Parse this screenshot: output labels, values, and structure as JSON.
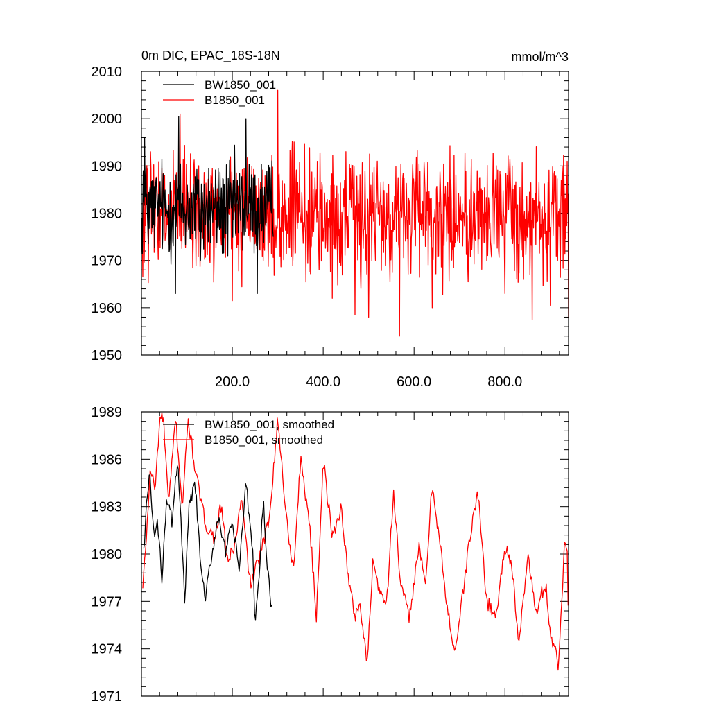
{
  "chart_data": [
    {
      "type": "line",
      "title": "0m DIC, EPAC_18S-18N",
      "units": "mmol/m^3",
      "xlim": [
        0,
        940
      ],
      "ylim": [
        1950,
        2010
      ],
      "yticks": [
        1950,
        1960,
        1970,
        1980,
        1990,
        2000,
        2010
      ],
      "ytick_labels": [
        "1950",
        "1960",
        "1970",
        "1980",
        "1990",
        "2000",
        "2010"
      ],
      "xticks": [
        200,
        400,
        600,
        800
      ],
      "xtick_labels": [
        "200.0",
        "400.0",
        "600.0",
        "800.0"
      ],
      "grid": false,
      "legend": "top-left",
      "series": [
        {
          "name": "BW1850_001",
          "color": "#000000",
          "x_start": 1,
          "x_end": 290,
          "points": 290,
          "mean": 1981,
          "range": [
            1963,
            2000.5
          ],
          "anchors": [
            [
              1,
              1979
            ],
            [
              4,
              1989
            ],
            [
              7,
              1996
            ],
            [
              12,
              1984
            ],
            [
              25,
              1976
            ],
            [
              40,
              1983
            ],
            [
              55,
              1980
            ],
            [
              75,
              1963
            ],
            [
              82,
              2000.5
            ],
            [
              100,
              1982
            ],
            [
              130,
              1970
            ],
            [
              160,
              1981
            ],
            [
              190,
              1971
            ],
            [
              230,
              2000
            ],
            [
              255,
              1963
            ],
            [
              275,
              1985
            ],
            [
              290,
              1975
            ]
          ]
        },
        {
          "name": "B1850_001",
          "color": "#ff0000",
          "x_start": 1,
          "x_end": 940,
          "points": 940,
          "mean": 1979.5,
          "range": [
            1954,
            2006
          ],
          "anchors": [
            [
              1,
              1972
            ],
            [
              3,
              1966.5
            ],
            [
              20,
              1993
            ],
            [
              85,
              2001
            ],
            [
              190,
              1982
            ],
            [
              200,
              1961.5
            ],
            [
              230,
              1990
            ],
            [
              300,
              2006
            ],
            [
              350,
              1979
            ],
            [
              420,
              1962
            ],
            [
              470,
              1958.5
            ],
            [
              500,
              1958
            ],
            [
              520,
              1984
            ],
            [
              568,
              1954
            ],
            [
              640,
              1960
            ],
            [
              710,
              1979
            ],
            [
              800,
              1963
            ],
            [
              860,
              1957.5
            ],
            [
              900,
              1960.5
            ],
            [
              930,
              1987
            ],
            [
              940,
              1958
            ]
          ]
        }
      ]
    },
    {
      "type": "line",
      "title": "",
      "xlim": [
        0,
        940
      ],
      "ylim": [
        1971,
        1989
      ],
      "yticks": [
        1971,
        1974,
        1977,
        1980,
        1983,
        1986,
        1989
      ],
      "ytick_labels": [
        "1971",
        "1974",
        "1977",
        "1980",
        "1983",
        "1986",
        "1989"
      ],
      "xticks": [
        200,
        400,
        600,
        800
      ],
      "grid": false,
      "legend": "top-left",
      "series": [
        {
          "name": "BW1850_001, smoothed",
          "color": "#000000",
          "x_start": 5,
          "x_end": 288,
          "anchors": [
            [
              5,
              1980
            ],
            [
              10,
              1982.8
            ],
            [
              18,
              1985.0
            ],
            [
              28,
              1981.0
            ],
            [
              35,
              1982.0
            ],
            [
              45,
              1978.5
            ],
            [
              55,
              1983.5
            ],
            [
              68,
              1982.0
            ],
            [
              80,
              1986.3
            ],
            [
              95,
              1977.0
            ],
            [
              105,
              1983.0
            ],
            [
              118,
              1984.5
            ],
            [
              130,
              1979.5
            ],
            [
              140,
              1977.0
            ],
            [
              155,
              1980.0
            ],
            [
              170,
              1982.5
            ],
            [
              185,
              1980.0
            ],
            [
              200,
              1982.0
            ],
            [
              215,
              1979.0
            ],
            [
              230,
              1984.5
            ],
            [
              245,
              1980.0
            ],
            [
              250,
              1975.8
            ],
            [
              258,
              1978.0
            ],
            [
              268,
              1983.5
            ],
            [
              278,
              1979.0
            ],
            [
              283,
              1977.5
            ],
            [
              288,
              1976.3
            ]
          ]
        },
        {
          "name": "B1850_001, smoothed",
          "color": "#ff0000",
          "x_start": 3,
          "x_end": 940,
          "anchors": [
            [
              3,
              1977.8
            ],
            [
              8,
              1979.8
            ],
            [
              20,
              1985.5
            ],
            [
              30,
              1984.0
            ],
            [
              40,
              1988.5
            ],
            [
              48,
              1988.7
            ],
            [
              60,
              1983.0
            ],
            [
              75,
              1988.7
            ],
            [
              90,
              1983.0
            ],
            [
              103,
              1988.5
            ],
            [
              120,
              1985.0
            ],
            [
              140,
              1982.0
            ],
            [
              160,
              1981.0
            ],
            [
              175,
              1983.0
            ],
            [
              190,
              1979.5
            ],
            [
              205,
              1980.5
            ],
            [
              220,
              1983.5
            ],
            [
              240,
              1978.0
            ],
            [
              262,
              1980.0
            ],
            [
              280,
              1982.0
            ],
            [
              300,
              1988.5
            ],
            [
              320,
              1982.0
            ],
            [
              335,
              1979.0
            ],
            [
              350,
              1986.0
            ],
            [
              370,
              1982.0
            ],
            [
              385,
              1976.0
            ],
            [
              400,
              1986.0
            ],
            [
              420,
              1981.0
            ],
            [
              440,
              1983.0
            ],
            [
              455,
              1978.5
            ],
            [
              470,
              1976.0
            ],
            [
              480,
              1977.0
            ],
            [
              497,
              1973.0
            ],
            [
              510,
              1980.0
            ],
            [
              520,
              1978.0
            ],
            [
              540,
              1977.0
            ],
            [
              555,
              1984.0
            ],
            [
              570,
              1978.0
            ],
            [
              590,
              1976.0
            ],
            [
              610,
              1980.5
            ],
            [
              625,
              1978.0
            ],
            [
              640,
              1984.5
            ],
            [
              660,
              1980.0
            ],
            [
              670,
              1977.0
            ],
            [
              690,
              1973.8
            ],
            [
              710,
              1978.0
            ],
            [
              720,
              1980.5
            ],
            [
              740,
              1984.0
            ],
            [
              760,
              1977.0
            ],
            [
              780,
              1976.0
            ],
            [
              800,
              1980.5
            ],
            [
              815,
              1979.5
            ],
            [
              830,
              1974.0
            ],
            [
              850,
              1980.0
            ],
            [
              870,
              1976.0
            ],
            [
              880,
              1977.5
            ],
            [
              890,
              1978.0
            ],
            [
              900,
              1975.0
            ],
            [
              910,
              1974.0
            ],
            [
              918,
              1972.8
            ],
            [
              925,
              1977.0
            ],
            [
              932,
              1981.2
            ],
            [
              937,
              1980.5
            ],
            [
              940,
              1975.3
            ]
          ]
        }
      ]
    }
  ]
}
